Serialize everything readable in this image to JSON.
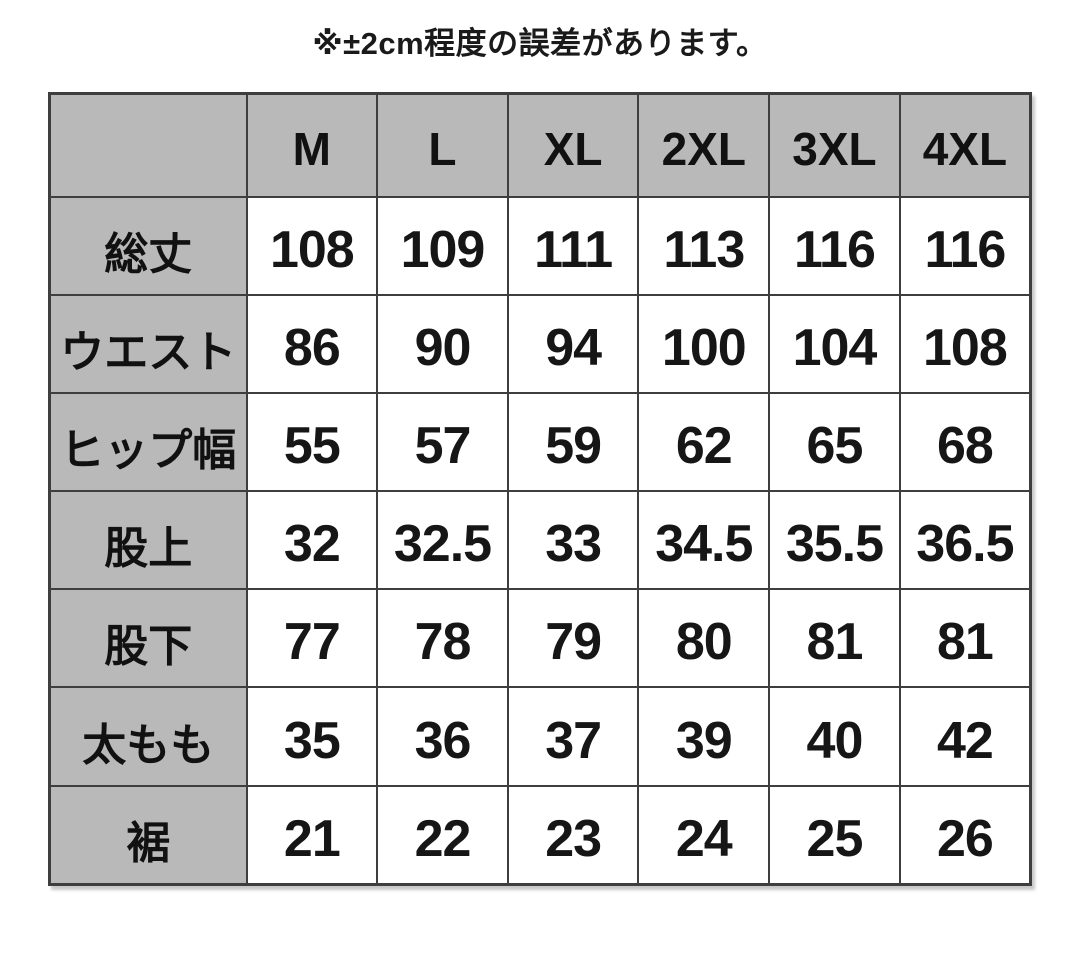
{
  "note": "※±2cm程度の誤差があります。",
  "colors": {
    "page_bg": "#ffffff",
    "header_bg": "#b9b9b9",
    "cell_bg": "#ffffff",
    "border": "#3e3e3e",
    "text": "#141414"
  },
  "chart_data": {
    "type": "table",
    "note": "※±2cm程度の誤差があります。",
    "columns": [
      "",
      "M",
      "L",
      "XL",
      "2XL",
      "3XL",
      "4XL"
    ],
    "rows": [
      {
        "label": "総丈",
        "values": [
          "108",
          "109",
          "111",
          "113",
          "116",
          "116"
        ]
      },
      {
        "label": "ウエスト",
        "values": [
          "86",
          "90",
          "94",
          "100",
          "104",
          "108"
        ]
      },
      {
        "label": "ヒップ幅",
        "values": [
          "55",
          "57",
          "59",
          "62",
          "65",
          "68"
        ]
      },
      {
        "label": "股上",
        "values": [
          "32",
          "32.5",
          "33",
          "34.5",
          "35.5",
          "36.5"
        ]
      },
      {
        "label": "股下",
        "values": [
          "77",
          "78",
          "79",
          "80",
          "81",
          "81"
        ]
      },
      {
        "label": "太もも",
        "values": [
          "35",
          "36",
          "37",
          "39",
          "40",
          "42"
        ]
      },
      {
        "label": "裾",
        "values": [
          "21",
          "22",
          "23",
          "24",
          "25",
          "26"
        ]
      }
    ]
  }
}
